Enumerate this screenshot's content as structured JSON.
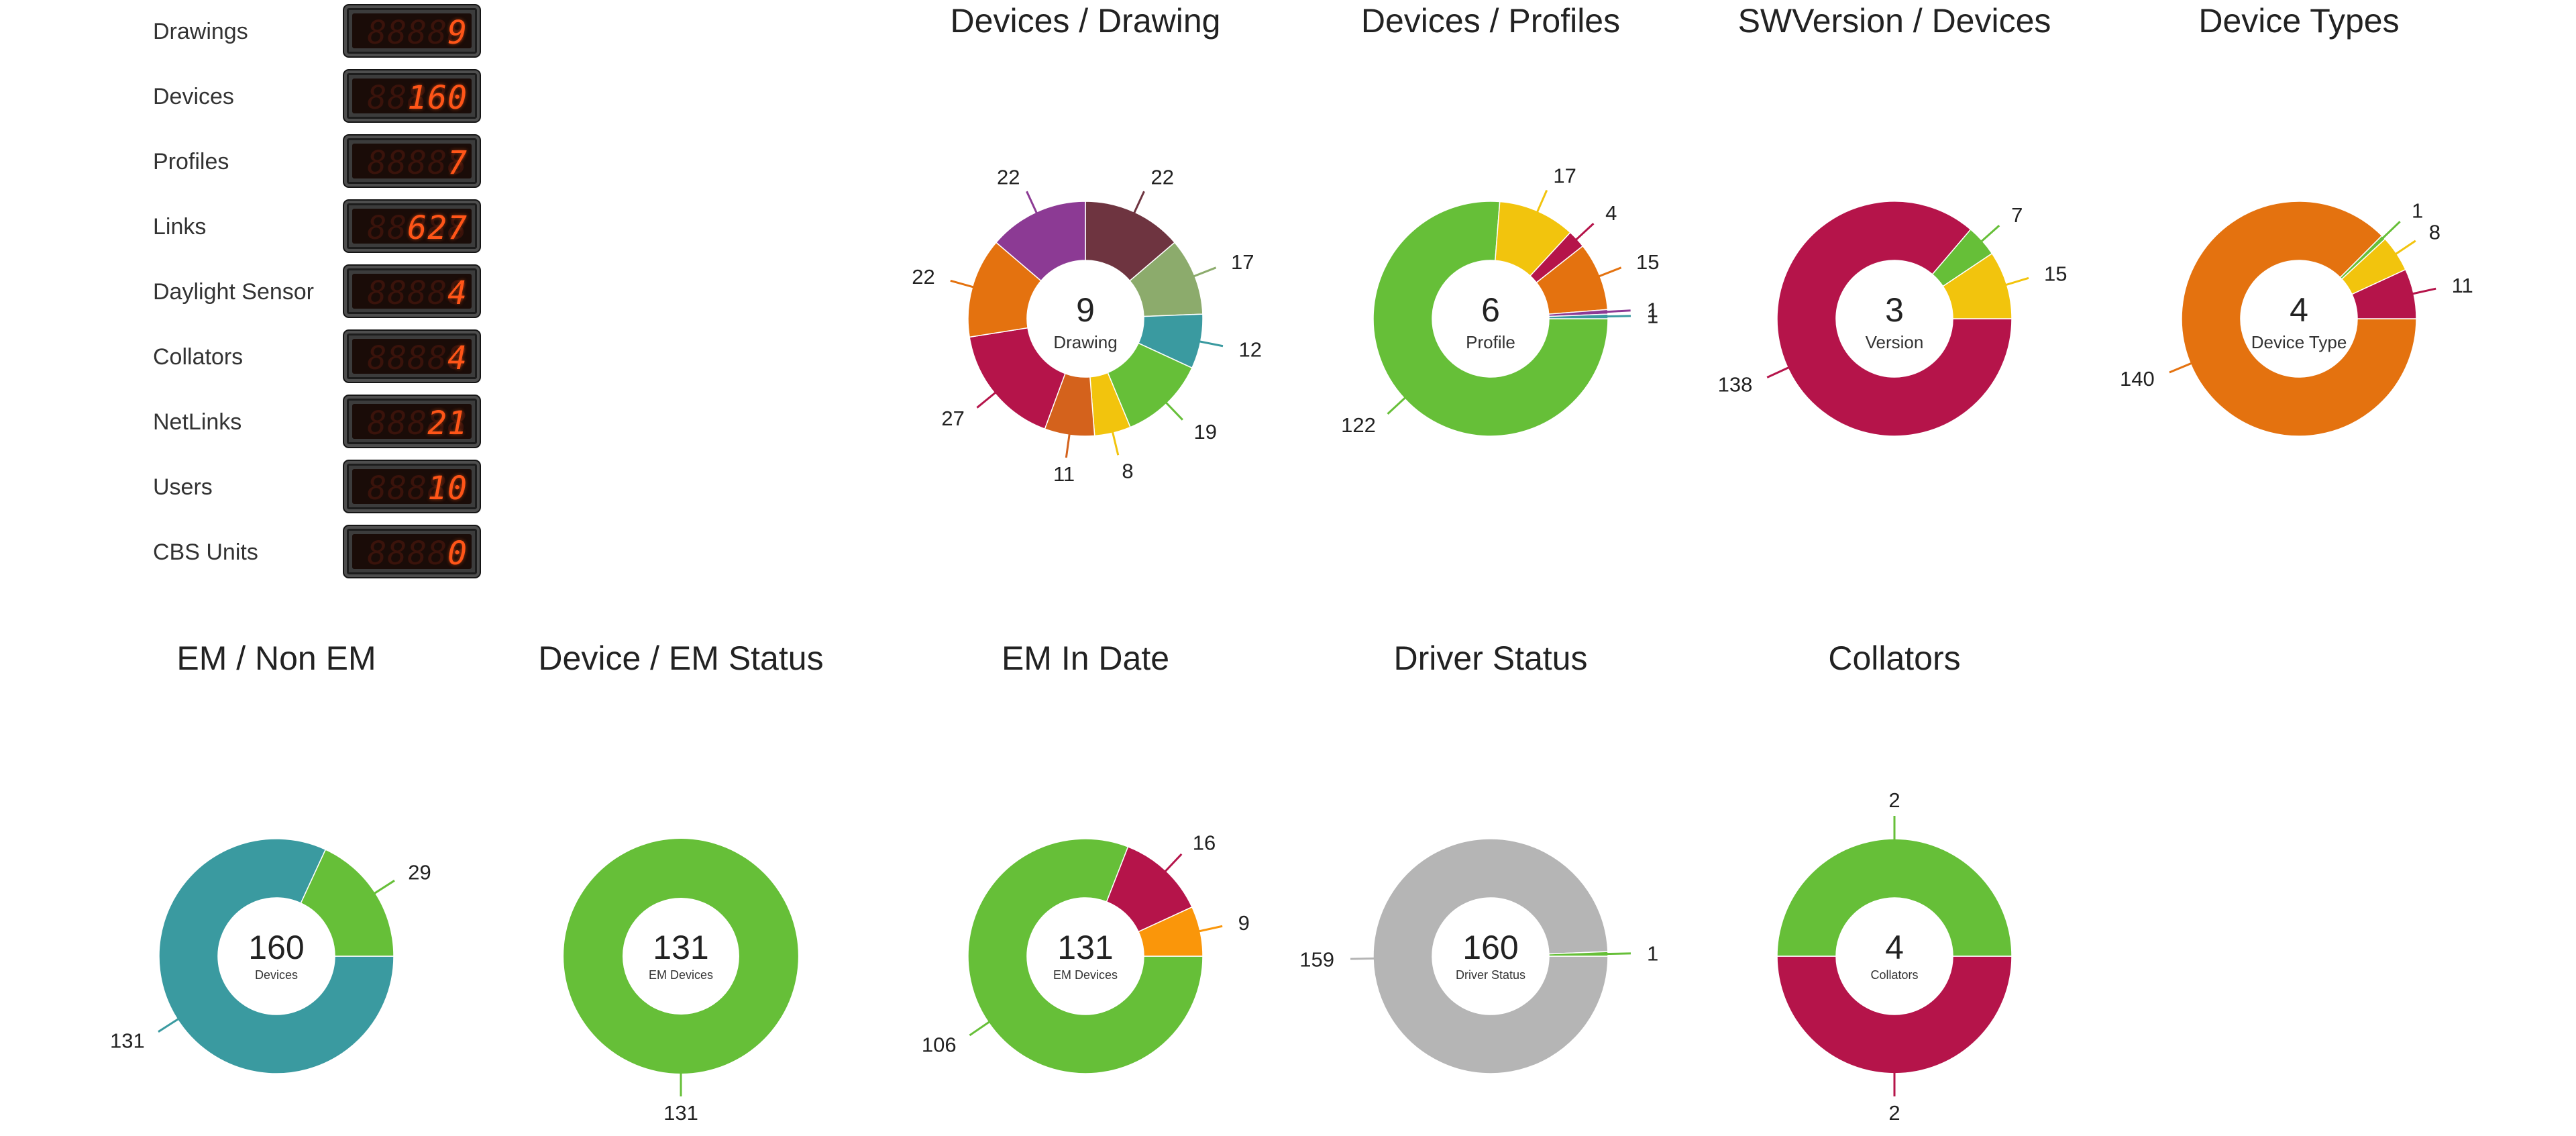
{
  "counters": [
    {
      "label": "Drawings",
      "value": "9"
    },
    {
      "label": "Devices",
      "value": "160"
    },
    {
      "label": "Profiles",
      "value": "7"
    },
    {
      "label": "Links",
      "value": "627"
    },
    {
      "label": "Daylight Sensor",
      "value": "4"
    },
    {
      "label": "Collators",
      "value": "4"
    },
    {
      "label": "NetLinks",
      "value": "21"
    },
    {
      "label": "Users",
      "value": "10"
    },
    {
      "label": "CBS Units",
      "value": "0"
    }
  ],
  "colors": {
    "green": "#66bf38",
    "crimson": "#b5144a",
    "orange": "#e4720f",
    "yellow": "#f2c40d",
    "teal": "#3a9aa0",
    "purple": "#8c3a94",
    "maroon": "#6e3440",
    "sage": "#8cab6c",
    "burnt-orange": "#d4621c",
    "amber": "#fa960a",
    "grey": "#b5b5b5",
    "counter-digit": "#ff5518"
  },
  "chart_data": [
    {
      "type": "pie",
      "title": "Devices / Drawing",
      "center_value": "9",
      "center_label": "Drawing",
      "values": [
        22,
        17,
        12,
        19,
        8,
        11,
        27,
        22,
        22
      ],
      "labels": [
        "22",
        "17",
        "12",
        "19",
        "8",
        "11",
        "27",
        "22",
        "22"
      ],
      "colors": [
        "#6e3440",
        "#8cab6c",
        "#3a9aa0",
        "#66bf38",
        "#f2c40d",
        "#d4621c",
        "#b5144a",
        "#e4720f",
        "#8c3a94"
      ]
    },
    {
      "type": "pie",
      "title": "Devices / Profiles",
      "center_value": "6",
      "center_label": "Profile",
      "values": [
        122,
        17,
        4,
        15,
        1,
        1
      ],
      "labels": [
        "122",
        "17",
        "4",
        "15",
        "1",
        "1"
      ],
      "colors": [
        "#66bf38",
        "#f2c40d",
        "#b5144a",
        "#e4720f",
        "#8c3a94",
        "#3a9aa0"
      ]
    },
    {
      "type": "pie",
      "title": "SWVersion / Devices",
      "center_value": "3",
      "center_label": "Version",
      "values": [
        138,
        7,
        15
      ],
      "labels": [
        "138",
        "7",
        "15"
      ],
      "colors": [
        "#b5144a",
        "#66bf38",
        "#f2c40d"
      ]
    },
    {
      "type": "pie",
      "title": "Device Types",
      "center_value": "4",
      "center_label": "Device Type",
      "values": [
        140,
        1,
        8,
        11
      ],
      "labels": [
        "140",
        "1",
        "8",
        "11"
      ],
      "colors": [
        "#e4720f",
        "#66bf38",
        "#f2c40d",
        "#b5144a"
      ]
    },
    {
      "type": "pie",
      "title": "EM / Non EM",
      "center_value": "160",
      "center_label": "Devices",
      "values": [
        131,
        29
      ],
      "labels": [
        "131",
        "29"
      ],
      "colors": [
        "#3a9aa0",
        "#66bf38"
      ]
    },
    {
      "type": "pie",
      "title": "Device / EM Status",
      "center_value": "131",
      "center_label": "EM Devices",
      "values": [
        131
      ],
      "labels": [
        "131"
      ],
      "colors": [
        "#66bf38"
      ]
    },
    {
      "type": "pie",
      "title": "EM In Date",
      "center_value": "131",
      "center_label": "EM Devices",
      "values": [
        106,
        16,
        9
      ],
      "labels": [
        "106",
        "16",
        "9"
      ],
      "colors": [
        "#66bf38",
        "#b5144a",
        "#fa960a"
      ]
    },
    {
      "type": "pie",
      "title": "Driver Status",
      "center_value": "160",
      "center_label": "Driver Status",
      "values": [
        159,
        1
      ],
      "labels": [
        "159",
        "1"
      ],
      "colors": [
        "#b5b5b5",
        "#66bf38"
      ]
    },
    {
      "type": "pie",
      "title": "Collators",
      "center_value": "4",
      "center_label": "Collators",
      "values": [
        2,
        2
      ],
      "labels": [
        "2",
        "2"
      ],
      "colors": [
        "#b5144a",
        "#66bf38"
      ]
    }
  ]
}
